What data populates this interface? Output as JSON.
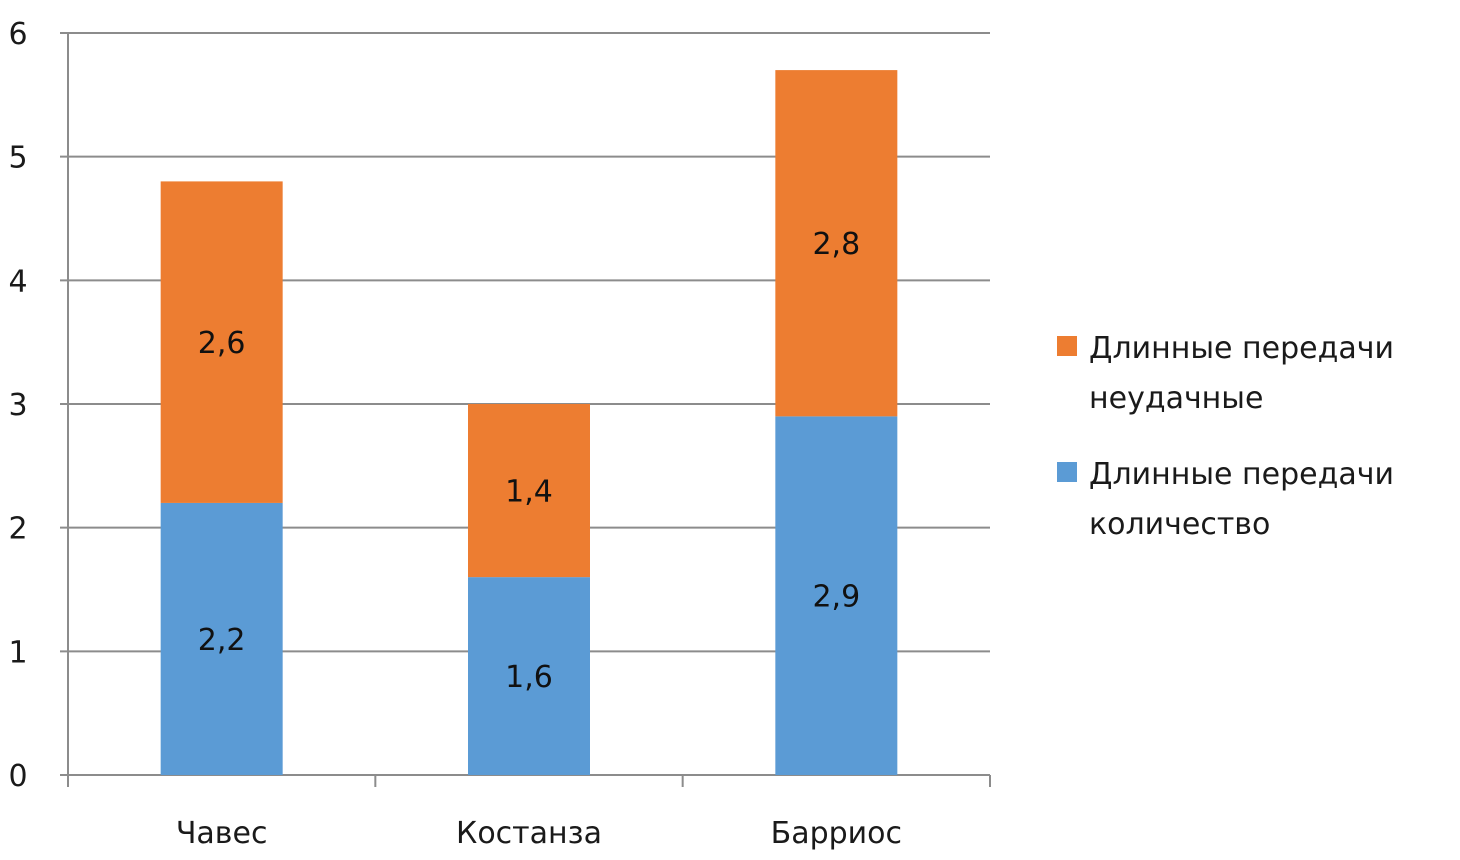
{
  "chart_data": {
    "type": "bar",
    "stacked": true,
    "categories": [
      "Чавес",
      "Костанза",
      "Барриос"
    ],
    "series": [
      {
        "name": "Длинные передачи количество",
        "legend_lines": [
          "Длинные передачи",
          "количество"
        ],
        "values": [
          2.2,
          1.6,
          2.9
        ],
        "labels": [
          "2,2",
          "1,6",
          "2,9"
        ],
        "color": "#5b9bd5"
      },
      {
        "name": "Длинные передачи неудачные",
        "legend_lines": [
          "Длинные передачи",
          "неудачные"
        ],
        "values": [
          2.6,
          1.4,
          2.8
        ],
        "labels": [
          "2,6",
          "1,4",
          "2,8"
        ],
        "color": "#ed7d31"
      }
    ],
    "ylim": [
      0,
      6
    ],
    "yticks": [
      "0",
      "1",
      "2",
      "3",
      "4",
      "5",
      "6"
    ],
    "grid": true,
    "legend_position": "right",
    "title": "",
    "xlabel": "",
    "ylabel": ""
  }
}
